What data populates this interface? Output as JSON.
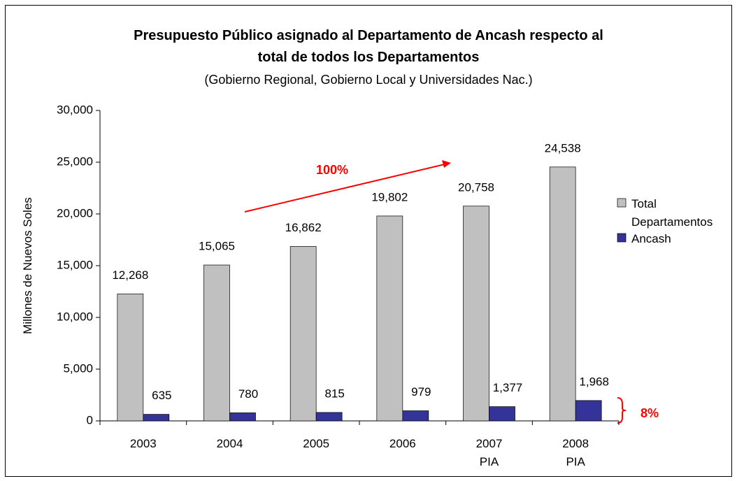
{
  "chart_data": {
    "type": "bar",
    "title": "Presupuesto Público asignado al Departamento de Ancash respecto al total de todos los Departamentos",
    "subtitle": "(Gobierno Regional, Gobierno Local y Universidades Nac.)",
    "y_label": "Millones de Nuevos Soles",
    "categories": [
      "2003",
      "2004",
      "2005",
      "2006",
      "2007\nPIA",
      "2008\nPIA"
    ],
    "series": [
      {
        "name": "Total Departamentos",
        "color": "#c0c0c0",
        "values": [
          12268,
          15065,
          16862,
          19802,
          20758,
          24538
        ],
        "value_labels": [
          "12,268",
          "15,065",
          "16,862",
          "19,802",
          "20,758",
          "24,538"
        ]
      },
      {
        "name": "Ancash",
        "color": "#333399",
        "values": [
          635,
          780,
          815,
          979,
          1377,
          1968
        ],
        "value_labels": [
          "635",
          "780",
          "815",
          "979",
          "1,377",
          "1,968"
        ]
      }
    ],
    "ylim": [
      0,
      30000
    ],
    "yticks": [
      0,
      {
        "value": 5000,
        "label": "5,000"
      },
      {
        "value": 10000,
        "label": "10,000"
      },
      {
        "value": 15000,
        "label": "15,000"
      },
      {
        "value": 20000,
        "label": "20,000"
      },
      {
        "value": 25000,
        "label": "25,000"
      },
      {
        "value": 30000,
        "label": "30,000"
      }
    ],
    "legend": "right",
    "annotations": [
      {
        "text": "100%",
        "color": "#ff0000"
      },
      {
        "text": "8%",
        "color": "#ff0000"
      }
    ]
  }
}
